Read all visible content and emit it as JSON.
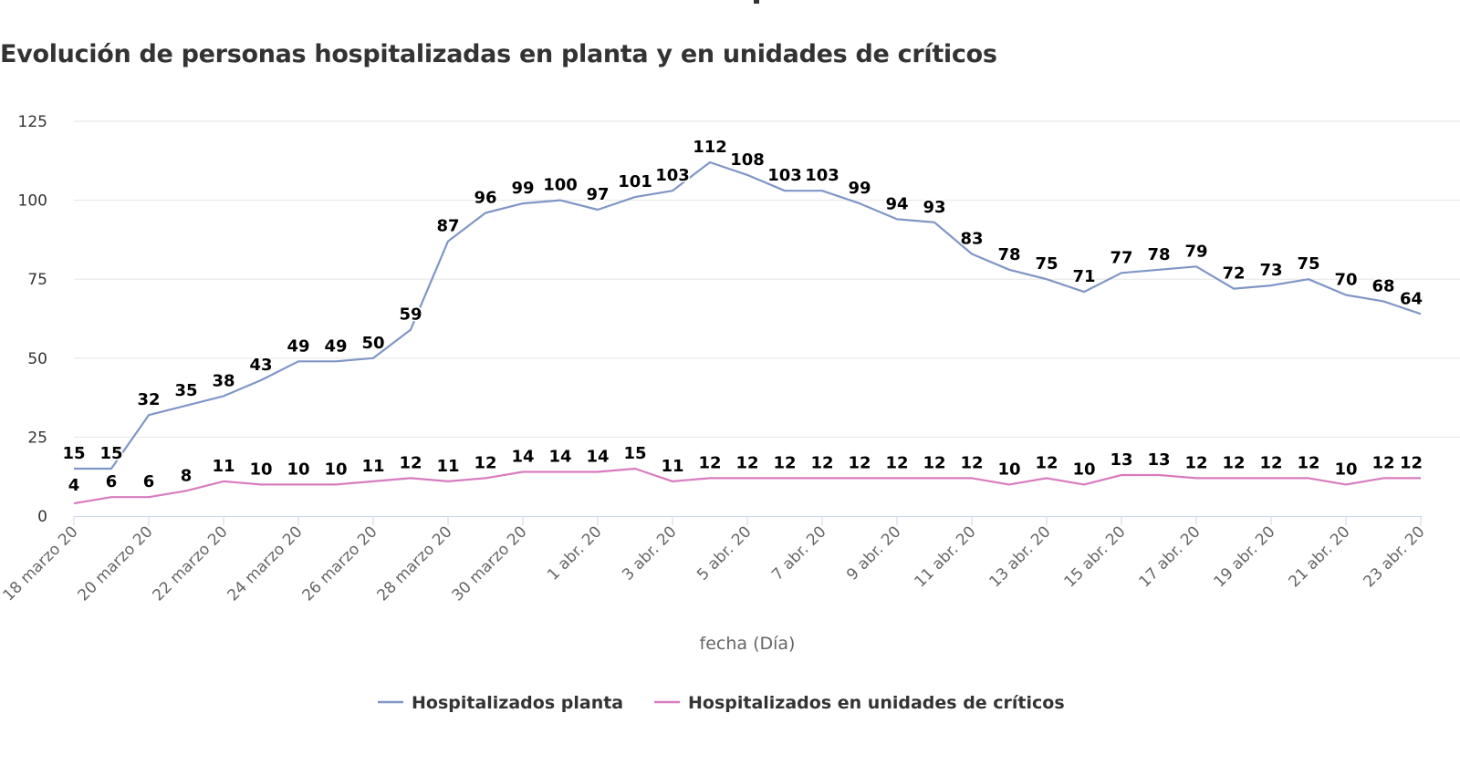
{
  "chart_data": {
    "type": "line",
    "title": "Evolución de personas hospitalizadas en planta y en unidades de críticos",
    "xlabel": "fecha (Día)",
    "ylabel": "",
    "ylim": [
      0,
      125
    ],
    "yticks": [
      0,
      25,
      50,
      75,
      100,
      125
    ],
    "grid": true,
    "legend_position": "bottom",
    "x": [
      "18 marzo 20",
      "19 marzo 20",
      "20 marzo 20",
      "21 marzo 20",
      "22 marzo 20",
      "23 marzo 20",
      "24 marzo 20",
      "25 marzo 20",
      "26 marzo 20",
      "27 marzo 20",
      "28 marzo 20",
      "29 marzo 20",
      "30 marzo 20",
      "31 marzo 20",
      "1 abr. 20",
      "2 abr. 20",
      "3 abr. 20",
      "4 abr. 20",
      "5 abr. 20",
      "6 abr. 20",
      "7 abr. 20",
      "8 abr. 20",
      "9 abr. 20",
      "10 abr. 20",
      "11 abr. 20",
      "12 abr. 20",
      "13 abr. 20",
      "14 abr. 20",
      "15 abr. 20",
      "16 abr. 20",
      "17 abr. 20",
      "18 abr. 20",
      "19 abr. 20",
      "20 abr. 20",
      "21 abr. 20",
      "22 abr. 20",
      "23 abr. 20"
    ],
    "xtick_labels": [
      "18 marzo 20",
      "20 marzo 20",
      "22 marzo 20",
      "24 marzo 20",
      "26 marzo 20",
      "28 marzo 20",
      "30 marzo 20",
      "1 abr. 20",
      "3 abr. 20",
      "5 abr. 20",
      "7 abr. 20",
      "9 abr. 20",
      "11 abr. 20",
      "13 abr. 20",
      "15 abr. 20",
      "17 abr. 20",
      "19 abr. 20",
      "21 abr. 20",
      "23 abr. 20"
    ],
    "series": [
      {
        "name": "Hospitalizados planta",
        "color": "#8096c7",
        "values": [
          15,
          15,
          32,
          35,
          38,
          43,
          49,
          49,
          50,
          59,
          87,
          96,
          99,
          100,
          97,
          101,
          103,
          112,
          108,
          103,
          103,
          99,
          94,
          93,
          83,
          78,
          75,
          71,
          77,
          78,
          79,
          72,
          73,
          75,
          70,
          68,
          64
        ]
      },
      {
        "name": "Hospitalizados en unidades de críticos",
        "color": "#d97bbf",
        "values": [
          4,
          6,
          6,
          8,
          11,
          10,
          10,
          10,
          11,
          12,
          11,
          12,
          14,
          14,
          14,
          15,
          11,
          12,
          12,
          12,
          12,
          12,
          12,
          12,
          12,
          10,
          12,
          10,
          13,
          13,
          12,
          12,
          12,
          12,
          10,
          12,
          12
        ]
      }
    ]
  }
}
